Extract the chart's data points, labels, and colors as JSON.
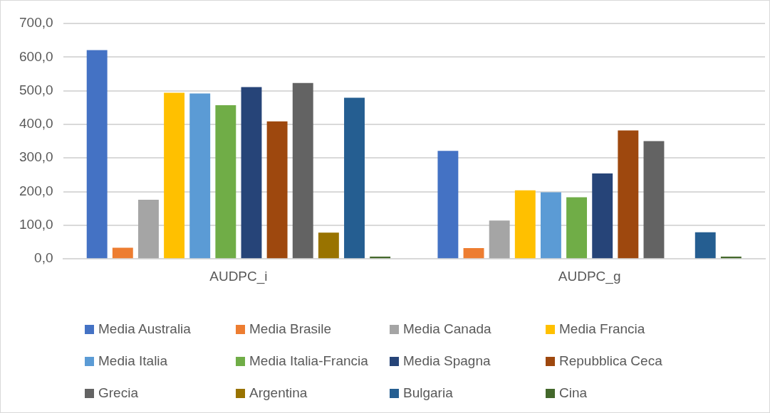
{
  "chart_data": {
    "type": "bar",
    "categories": [
      "AUDPC_i",
      "AUDPC_g"
    ],
    "series": [
      {
        "name": "Media Australia",
        "color": "#4472c4",
        "values": [
          621,
          321
        ]
      },
      {
        "name": "Media Brasile",
        "color": "#ed7d31",
        "values": [
          33,
          32
        ]
      },
      {
        "name": "Media Canada",
        "color": "#a5a5a5",
        "values": [
          176,
          114
        ]
      },
      {
        "name": "Media Francia",
        "color": "#ffc000",
        "values": [
          494,
          204
        ]
      },
      {
        "name": "Media Italia",
        "color": "#5b9bd5",
        "values": [
          492,
          198
        ]
      },
      {
        "name": "Media Italia-Francia",
        "color": "#70ad47",
        "values": [
          457,
          183
        ]
      },
      {
        "name": "Media Spagna",
        "color": "#264478",
        "values": [
          511,
          254
        ]
      },
      {
        "name": "Repubblica Ceca",
        "color": "#9e480e",
        "values": [
          409,
          382
        ]
      },
      {
        "name": "Grecia",
        "color": "#636363",
        "values": [
          523,
          350
        ]
      },
      {
        "name": "Argentina",
        "color": "#997300",
        "values": [
          78,
          null
        ]
      },
      {
        "name": "Bulgaria",
        "color": "#255e91",
        "values": [
          479,
          79
        ]
      },
      {
        "name": "Cina",
        "color": "#43682b",
        "values": [
          7,
          7
        ]
      }
    ],
    "ylim": [
      0,
      700
    ],
    "yticks": [
      {
        "value": 0,
        "label": "0,0"
      },
      {
        "value": 100,
        "label": "100,0"
      },
      {
        "value": 200,
        "label": "200,0"
      },
      {
        "value": 300,
        "label": "300,0"
      },
      {
        "value": 400,
        "label": "400,0"
      },
      {
        "value": 500,
        "label": "500,0"
      },
      {
        "value": 600,
        "label": "600,0"
      },
      {
        "value": 700,
        "label": "700,0"
      }
    ],
    "grid": "y",
    "legend": "bottom"
  }
}
